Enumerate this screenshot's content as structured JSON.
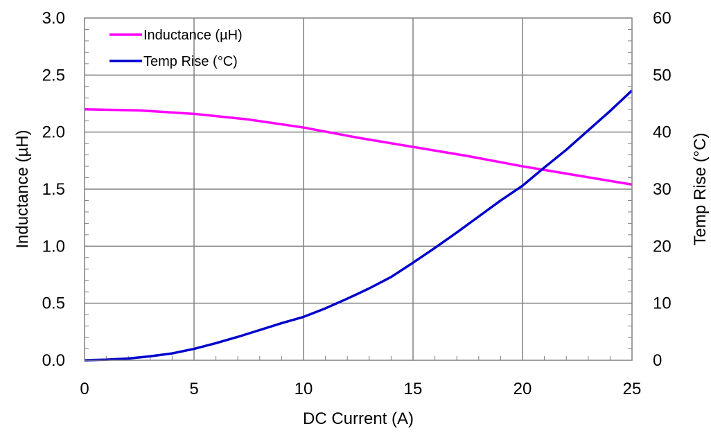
{
  "chart_data": {
    "type": "line",
    "xlabel": "DC Current (A)",
    "ylabel_left": "Inductance (µH)",
    "ylabel_right": "Temp Rise (°C)",
    "xlim": [
      0,
      25
    ],
    "ylim_left": [
      0,
      3.0
    ],
    "ylim_right": [
      0,
      60
    ],
    "x_ticks": [
      "0",
      "5",
      "10",
      "15",
      "20",
      "25"
    ],
    "y_left_ticks": [
      "0.0",
      "0.5",
      "1.0",
      "1.5",
      "2.0",
      "2.5",
      "3.0"
    ],
    "y_right_ticks": [
      "0",
      "10",
      "20",
      "30",
      "40",
      "50",
      "60"
    ],
    "grid": true,
    "legend_position": "top-left",
    "series": [
      {
        "name": "Inductance  (µH)",
        "axis": "left",
        "color": "#ff00ff",
        "x": [
          0,
          2.5,
          5,
          7.5,
          10,
          12.5,
          15,
          17.5,
          20,
          22.5,
          25
        ],
        "y": [
          2.2,
          2.19,
          2.16,
          2.11,
          2.04,
          1.95,
          1.87,
          1.79,
          1.7,
          1.62,
          1.54
        ]
      },
      {
        "name": "Temp Rise (°C)",
        "axis": "right",
        "color": "#0000cc",
        "x": [
          0,
          1,
          2,
          3,
          4,
          5,
          6,
          7,
          8,
          9,
          10,
          11,
          12,
          13,
          14,
          15,
          16,
          17,
          18,
          19,
          20,
          21,
          22,
          23,
          24,
          25
        ],
        "y": [
          0,
          0.1,
          0.3,
          0.7,
          1.2,
          2.0,
          3.0,
          4.1,
          5.3,
          6.5,
          7.6,
          9.1,
          10.8,
          12.6,
          14.6,
          17.1,
          19.7,
          22.4,
          25.2,
          28.0,
          30.6,
          33.8,
          36.9,
          40.3,
          43.7,
          47.3
        ]
      }
    ]
  }
}
